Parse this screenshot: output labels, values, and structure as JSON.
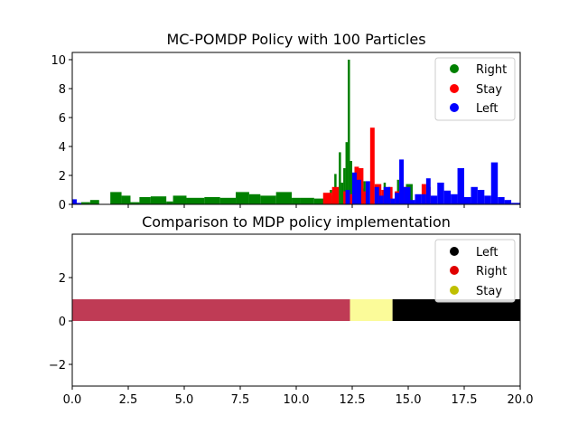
{
  "chart_data": [
    {
      "type": "bar",
      "title": "MC-POMDP Policy with 100 Particles",
      "xlabel": "",
      "ylabel": "",
      "xlim": [
        0,
        20
      ],
      "ylim": [
        0,
        10.5
      ],
      "yticks": [
        0,
        2,
        4,
        6,
        8,
        10
      ],
      "legend": {
        "position": "top-right",
        "entries": [
          {
            "label": "Right",
            "color": "#008000"
          },
          {
            "label": "Stay",
            "color": "#ff0000"
          },
          {
            "label": "Left",
            "color": "#0000ff"
          }
        ]
      },
      "series": [
        {
          "name": "Right",
          "color": "#008000",
          "bars": [
            [
              0.0,
              0.08,
              0.1
            ],
            [
              0.4,
              0.4,
              0.15
            ],
            [
              0.8,
              0.4,
              0.3
            ],
            [
              1.7,
              0.5,
              0.85
            ],
            [
              2.2,
              0.4,
              0.6
            ],
            [
              2.6,
              0.4,
              0.15
            ],
            [
              3.0,
              0.5,
              0.5
            ],
            [
              3.5,
              0.2,
              0.15
            ],
            [
              3.5,
              0.7,
              0.55
            ],
            [
              4.2,
              0.3,
              0.2
            ],
            [
              4.5,
              0.6,
              0.6
            ],
            [
              5.1,
              0.8,
              0.45
            ],
            [
              5.9,
              0.7,
              0.5
            ],
            [
              6.6,
              0.7,
              0.45
            ],
            [
              7.3,
              0.6,
              0.85
            ],
            [
              7.9,
              0.5,
              0.7
            ],
            [
              8.4,
              0.7,
              0.6
            ],
            [
              9.1,
              0.7,
              0.85
            ],
            [
              9.8,
              0.4,
              0.45
            ],
            [
              10.2,
              0.6,
              0.45
            ],
            [
              10.8,
              0.6,
              0.4
            ],
            [
              11.5,
              0.1,
              1.0
            ],
            [
              11.6,
              0.1,
              0.6
            ],
            [
              11.7,
              0.1,
              2.1
            ],
            [
              11.8,
              0.1,
              0.3
            ],
            [
              11.9,
              0.1,
              3.6
            ],
            [
              12.0,
              0.1,
              1.5
            ],
            [
              12.1,
              0.1,
              2.5
            ],
            [
              12.2,
              0.1,
              4.3
            ],
            [
              12.3,
              0.1,
              10.0
            ],
            [
              12.4,
              0.1,
              3.0
            ],
            [
              12.7,
              0.1,
              2.4
            ],
            [
              12.8,
              0.1,
              2.0
            ],
            [
              12.9,
              0.1,
              1.1
            ],
            [
              13.0,
              0.1,
              1.6
            ],
            [
              13.9,
              0.1,
              1.5
            ],
            [
              14.0,
              0.1,
              0.5
            ],
            [
              14.1,
              0.2,
              0.4
            ],
            [
              14.5,
              0.1,
              1.7
            ],
            [
              14.7,
              0.1,
              1.3
            ],
            [
              14.8,
              0.1,
              0.5
            ],
            [
              14.9,
              0.3,
              1.4
            ],
            [
              15.0,
              0.1,
              1.0
            ]
          ]
        },
        {
          "name": "Stay",
          "color": "#ff0000",
          "bars": [
            [
              11.2,
              0.4,
              0.8
            ],
            [
              11.6,
              0.3,
              1.2
            ],
            [
              12.1,
              0.2,
              0.9
            ],
            [
              12.4,
              0.2,
              0.7
            ],
            [
              12.6,
              0.2,
              2.6
            ],
            [
              12.8,
              0.2,
              2.5
            ],
            [
              13.0,
              0.2,
              0.9
            ],
            [
              13.3,
              0.2,
              5.3
            ],
            [
              13.5,
              0.3,
              1.4
            ],
            [
              13.8,
              0.2,
              1.0
            ],
            [
              14.1,
              0.2,
              1.2
            ],
            [
              14.4,
              0.3,
              0.9
            ],
            [
              14.8,
              0.2,
              1.2
            ],
            [
              15.6,
              0.2,
              1.4
            ],
            [
              15.8,
              0.2,
              1.2
            ]
          ]
        },
        {
          "name": "Left",
          "color": "#0000ff",
          "bars": [
            [
              0.0,
              0.2,
              0.35
            ],
            [
              0.2,
              0.2,
              0.1
            ],
            [
              12.2,
              0.2,
              1.0
            ],
            [
              12.5,
              0.2,
              2.2
            ],
            [
              12.7,
              0.2,
              1.7
            ],
            [
              13.1,
              0.2,
              1.6
            ],
            [
              13.5,
              0.2,
              1.2
            ],
            [
              13.7,
              0.2,
              0.6
            ],
            [
              13.9,
              0.3,
              1.2
            ],
            [
              14.2,
              0.2,
              0.4
            ],
            [
              14.4,
              0.2,
              0.8
            ],
            [
              14.6,
              0.2,
              3.1
            ],
            [
              14.8,
              0.3,
              1.2
            ],
            [
              15.1,
              0.2,
              0.3
            ],
            [
              15.3,
              0.3,
              0.7
            ],
            [
              15.6,
              0.2,
              0.7
            ],
            [
              15.8,
              0.2,
              1.8
            ],
            [
              16.0,
              0.3,
              0.6
            ],
            [
              16.3,
              0.3,
              1.5
            ],
            [
              16.6,
              0.3,
              0.95
            ],
            [
              16.9,
              0.3,
              0.7
            ],
            [
              17.2,
              0.3,
              2.5
            ],
            [
              17.5,
              0.3,
              0.5
            ],
            [
              17.8,
              0.3,
              1.2
            ],
            [
              18.1,
              0.3,
              1.0
            ],
            [
              18.4,
              0.3,
              0.6
            ],
            [
              18.7,
              0.3,
              2.9
            ],
            [
              19.0,
              0.3,
              0.5
            ],
            [
              19.3,
              0.3,
              0.3
            ],
            [
              19.6,
              0.4,
              0.1
            ]
          ]
        }
      ]
    },
    {
      "type": "bar",
      "title": "Comparison to MDP policy implementation",
      "xlabel": "",
      "ylabel": "",
      "xlim": [
        0,
        20
      ],
      "ylim": [
        -3,
        4
      ],
      "xticks": [
        0,
        2.5,
        5,
        7.5,
        10,
        12.5,
        15,
        17.5,
        20
      ],
      "xtick_labels": [
        "0.0",
        "2.5",
        "5.0",
        "7.5",
        "10.0",
        "12.5",
        "15.0",
        "17.5",
        "20.0"
      ],
      "yticks": [
        -2,
        0,
        2
      ],
      "legend": {
        "position": "top-right",
        "entries": [
          {
            "label": "Left",
            "color": "#000000"
          },
          {
            "label": "Right",
            "color": "#e00000"
          },
          {
            "label": "Stay",
            "color": "#bfbf00"
          }
        ]
      },
      "segments": [
        {
          "start": 0,
          "end": 12.4,
          "value": 1,
          "color": "#bf3b55"
        },
        {
          "start": 12.4,
          "end": 14.3,
          "value": 1,
          "color": "#fbfb99"
        },
        {
          "start": 14.3,
          "end": 20,
          "value": 1,
          "color": "#000000"
        }
      ]
    }
  ]
}
